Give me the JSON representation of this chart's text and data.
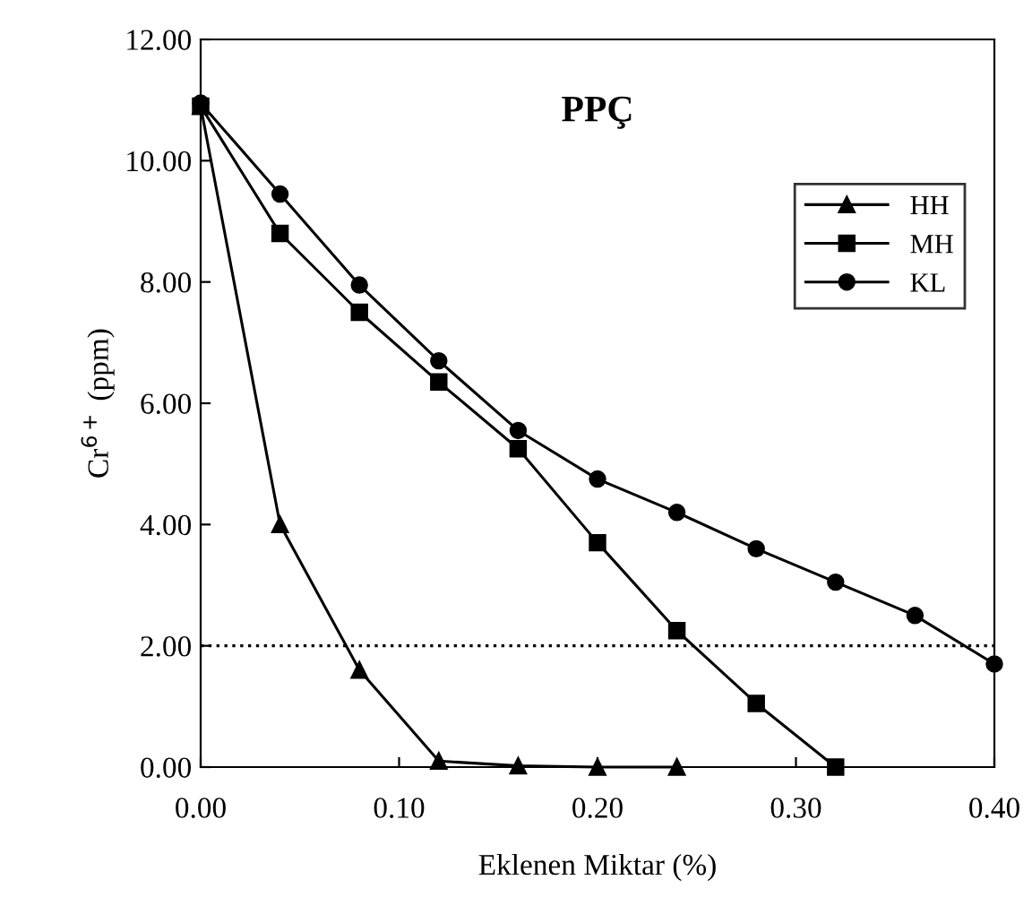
{
  "chart_data": {
    "type": "line",
    "title": "PPÇ",
    "xlabel": "Eklenen Miktar (%)",
    "ylabel": "Cr$^{6+}$ (ppm)",
    "x": [
      0.0,
      0.04,
      0.08,
      0.12,
      0.16,
      0.2,
      0.24,
      0.28,
      0.32,
      0.36,
      0.4
    ],
    "series": [
      {
        "name": "HH",
        "color": "#000000",
        "marker": "triangle",
        "values": [
          10.9,
          4.0,
          1.6,
          0.1,
          0.02,
          0.0,
          0.0,
          null,
          null,
          null,
          null
        ]
      },
      {
        "name": "MH",
        "color": "#000000",
        "marker": "square",
        "values": [
          10.9,
          8.8,
          7.5,
          6.35,
          5.25,
          3.7,
          2.25,
          1.05,
          0.0,
          null,
          null
        ]
      },
      {
        "name": "KL",
        "color": "#000000",
        "marker": "circle",
        "values": [
          10.95,
          9.45,
          7.95,
          6.7,
          5.55,
          4.75,
          4.2,
          3.6,
          3.05,
          2.5,
          1.7
        ]
      }
    ],
    "xlim": [
      0.0,
      0.4
    ],
    "xticks": [
      {
        "value": 0.0,
        "label": "0.00"
      },
      {
        "value": 0.1,
        "label": "0.10"
      },
      {
        "value": 0.2,
        "label": "0.20"
      },
      {
        "value": 0.3,
        "label": "0.30"
      },
      {
        "value": 0.4,
        "label": "0.40"
      }
    ],
    "ylim": [
      0,
      12
    ],
    "yticks": [
      {
        "value": 0,
        "label": "0.00"
      },
      {
        "value": 2,
        "label": "2.00"
      },
      {
        "value": 4,
        "label": "4.00"
      },
      {
        "value": 6,
        "label": "6.00"
      },
      {
        "value": 8,
        "label": "8.00"
      },
      {
        "value": 10,
        "label": "10.00"
      },
      {
        "value": 12,
        "label": "12.00"
      }
    ],
    "ref_lines": [
      {
        "axis": "y",
        "value": 2,
        "line_style": "dotted",
        "color": "#000000"
      }
    ],
    "grid": false,
    "legend": "top right",
    "line_style": "solid"
  }
}
